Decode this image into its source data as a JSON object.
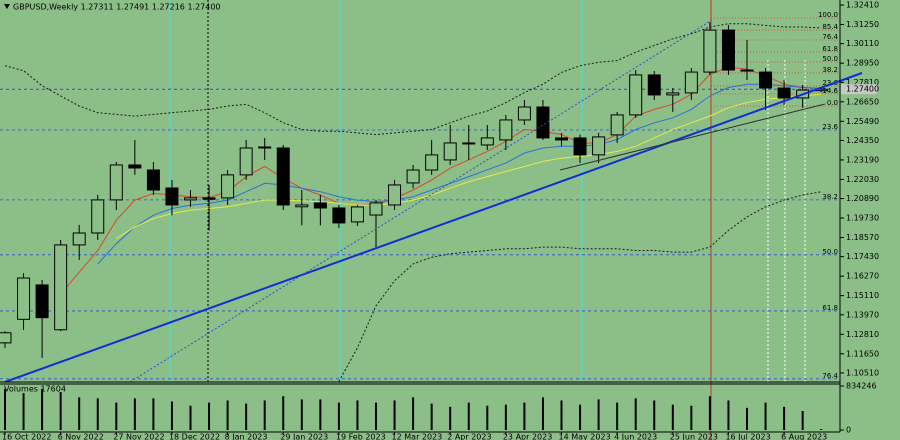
{
  "chart_data": {
    "type": "candlestick",
    "title": "GBPUSD,Weekly  1.27311 1.27491 1.27216 1.27400",
    "categories": [
      "16 Oct 2022",
      null,
      null,
      "6 Nov 2022",
      null,
      null,
      "27 Nov 2022",
      null,
      null,
      "18 Dec 2022",
      null,
      null,
      "8 Jan 2023",
      null,
      null,
      "29 Jan 2023",
      null,
      null,
      "19 Feb 2023",
      null,
      null,
      "12 Mar 2023",
      null,
      null,
      "2 Apr 2023",
      null,
      null,
      "23 Apr 2023",
      null,
      null,
      "14 May 2023",
      null,
      null,
      "4 Jun 2023",
      null,
      null,
      "25 Jun 2023",
      null,
      null,
      "16 Jul 2023",
      null,
      null,
      "6 Aug 2023",
      null,
      null
    ],
    "open": [
      1.123,
      1.137,
      1.1575,
      1.1308,
      1.1813,
      1.1884,
      1.2081,
      1.2289,
      1.2259,
      1.2152,
      1.2081,
      1.2093,
      1.2093,
      1.223,
      1.239,
      1.239,
      1.204,
      1.2063,
      1.2033,
      1.195,
      1.1991,
      1.2051,
      1.2182,
      1.2259,
      1.2319,
      1.242,
      1.2408,
      1.2438,
      1.2557,
      1.2634,
      1.245,
      1.245,
      1.2349,
      1.2468,
      1.2587,
      1.2825,
      1.2706,
      1.2718,
      1.2842,
      1.3092,
      1.2854,
      1.2842,
      1.2747,
      1.2688,
      1.27311
    ],
    "high": [
      1.13,
      1.1645,
      1.1605,
      1.1843,
      1.1932,
      1.2111,
      1.2307,
      1.2438,
      1.2307,
      1.22,
      1.214,
      1.217,
      1.2259,
      1.2438,
      1.245,
      1.2408,
      1.214,
      1.2111,
      1.2051,
      1.2051,
      1.2081,
      1.22,
      1.2289,
      1.2438,
      1.2527,
      1.2527,
      1.2527,
      1.2587,
      1.2676,
      1.2676,
      1.248,
      1.247,
      1.248,
      1.2605,
      1.2854,
      1.2848,
      1.2747,
      1.2866,
      1.314,
      1.3122,
      1.3033,
      1.2866,
      1.2795,
      1.2765,
      1.27491
    ],
    "low": [
      1.12,
      1.1307,
      1.114,
      1.13,
      1.1724,
      1.1843,
      1.2021,
      1.223,
      1.2111,
      1.199,
      1.204,
      1.19,
      1.2051,
      1.22,
      1.2319,
      1.2021,
      1.193,
      1.193,
      1.1914,
      1.1926,
      1.18,
      1.2021,
      1.215,
      1.223,
      1.2289,
      1.2319,
      1.2378,
      1.2378,
      1.2527,
      1.2438,
      1.24,
      1.23,
      1.23,
      1.242,
      1.2569,
      1.2676,
      1.2605,
      1.2676,
      1.2825,
      1.2825,
      1.2795,
      1.2617,
      1.2646,
      1.2629,
      1.27216
    ],
    "close": [
      1.129,
      1.1616,
      1.138,
      1.1813,
      1.1884,
      1.2081,
      1.2289,
      1.2271,
      1.214,
      1.2051,
      1.2093,
      1.2085,
      1.223,
      1.239,
      1.2396,
      1.2051,
      1.2051,
      1.2033,
      1.1944,
      1.2039,
      1.2063,
      1.217,
      1.2259,
      1.2349,
      1.242,
      1.242,
      1.245,
      1.2557,
      1.2634,
      1.245,
      1.2438,
      1.2349,
      1.2456,
      1.2587,
      1.2825,
      1.2706,
      1.2718,
      1.2842,
      1.3092,
      1.2854,
      1.2848,
      1.2747,
      1.2688,
      1.2735,
      1.274
    ],
    "up_color": "#8cbf88",
    "down_color": "#000000",
    "series": [
      {
        "color": "#d9472b",
        "dash": false,
        "values": [
          null,
          null,
          null,
          1.152,
          1.165,
          1.178,
          1.196,
          1.208,
          1.212,
          1.211,
          1.21,
          1.2095,
          1.213,
          1.222,
          1.228,
          1.221,
          1.215,
          1.211,
          1.206,
          1.205,
          1.2055,
          1.209,
          1.214,
          1.22,
          1.227,
          1.232,
          1.237,
          1.243,
          1.25,
          1.249,
          1.247,
          1.242,
          1.242,
          1.247,
          1.258,
          1.262,
          1.265,
          1.271,
          1.283,
          1.287,
          1.286,
          1.282,
          1.277,
          1.275,
          1.2745
        ]
      },
      {
        "color": "#2f6fd6",
        "dash": false,
        "values": [
          null,
          null,
          null,
          null,
          null,
          1.17,
          1.182,
          1.192,
          1.199,
          1.203,
          1.205,
          1.206,
          1.208,
          1.213,
          1.218,
          1.217,
          1.215,
          1.213,
          1.21,
          1.208,
          1.207,
          1.208,
          1.21,
          1.214,
          1.218,
          1.222,
          1.226,
          1.23,
          1.236,
          1.239,
          1.24,
          1.24,
          1.241,
          1.244,
          1.25,
          1.254,
          1.257,
          1.262,
          1.27,
          1.275,
          1.277,
          1.277,
          1.276,
          1.275,
          1.2745
        ]
      },
      {
        "color": "#e8e84a",
        "dash": false,
        "values": [
          null,
          null,
          null,
          null,
          null,
          null,
          1.185,
          1.192,
          1.197,
          1.2,
          1.202,
          1.203,
          1.204,
          1.206,
          1.208,
          1.208,
          1.2075,
          1.207,
          1.206,
          1.205,
          1.205,
          1.206,
          1.208,
          1.211,
          1.215,
          1.219,
          1.222,
          1.225,
          1.228,
          1.231,
          1.233,
          1.234,
          1.235,
          1.237,
          1.24,
          1.245,
          1.25,
          1.254,
          1.258,
          1.263,
          1.266,
          1.268,
          1.269,
          1.27,
          1.271
        ]
      },
      {
        "color": "#1a1a1a",
        "dash": true,
        "values": [
          1.288,
          1.285,
          1.276,
          1.27,
          1.264,
          1.26,
          1.259,
          1.258,
          1.259,
          1.26,
          1.261,
          1.262,
          1.264,
          1.265,
          1.26,
          1.254,
          1.25,
          1.249,
          1.249,
          1.248,
          1.247,
          1.248,
          1.249,
          1.25,
          1.254,
          1.258,
          1.261,
          1.266,
          1.272,
          1.277,
          1.284,
          1.288,
          1.29,
          1.291,
          1.296,
          1.3,
          1.304,
          1.307,
          1.311,
          1.313,
          1.313,
          1.312,
          1.311,
          1.311,
          1.3105
        ]
      },
      {
        "color": "#1a1a1a",
        "dash": true,
        "values": [
          null,
          null,
          null,
          null,
          null,
          null,
          null,
          null,
          null,
          null,
          null,
          null,
          null,
          null,
          null,
          null,
          null,
          null,
          1.1,
          1.12,
          1.145,
          1.16,
          1.17,
          1.174,
          1.176,
          1.177,
          1.178,
          1.179,
          1.179,
          1.18,
          1.18,
          1.179,
          1.179,
          1.179,
          1.178,
          1.178,
          1.177,
          1.177,
          1.18,
          1.19,
          1.198,
          1.204,
          1.208,
          1.211,
          1.213
        ]
      }
    ],
    "ylim": [
      1.0997,
      1.3271
    ],
    "yticks": [
      {
        "value": 1.3241,
        "label": "1.32410"
      },
      {
        "value": 1.3125,
        "label": "1.31250"
      },
      {
        "value": 1.3011,
        "label": "1.30110"
      },
      {
        "value": 1.2895,
        "label": "1.28950"
      },
      {
        "value": 1.2781,
        "label": "1.27810"
      },
      {
        "value": 1.2665,
        "label": "1.26650"
      },
      {
        "value": 1.2549,
        "label": "1.25490"
      },
      {
        "value": 1.2435,
        "label": "1.24350"
      },
      {
        "value": 1.2319,
        "label": "1.23190"
      },
      {
        "value": 1.2203,
        "label": "1.22030"
      },
      {
        "value": 1.2089,
        "label": "1.20890"
      },
      {
        "value": 1.1973,
        "label": "1.19730"
      },
      {
        "value": 1.1857,
        "label": "1.18570"
      },
      {
        "value": 1.1743,
        "label": "1.17430"
      },
      {
        "value": 1.1627,
        "label": "1.16270"
      },
      {
        "value": 1.1511,
        "label": "1.15110"
      },
      {
        "value": 1.1397,
        "label": "1.13970"
      },
      {
        "value": 1.1281,
        "label": "1.12810"
      },
      {
        "value": 1.1165,
        "label": "1.11650"
      },
      {
        "value": 1.1051,
        "label": "1.10510"
      }
    ],
    "current_price": {
      "value": 1.274,
      "label": "1.27400"
    },
    "fib_levels": [
      {
        "value": 1.3164,
        "label": "100.0",
        "color": "#e03a1e"
      },
      {
        "value": 1.3092,
        "label": "85.4",
        "color": "#e03a1e"
      },
      {
        "value": 1.3033,
        "label": "76.4",
        "color": "#e03a1e"
      },
      {
        "value": 1.2962,
        "label": "61.8",
        "color": "#e03a1e"
      },
      {
        "value": 1.2902,
        "label": "50.0",
        "color": "#e03a1e"
      },
      {
        "value": 1.2837,
        "label": "38.2",
        "color": "#e03a1e"
      },
      {
        "value": 1.2759,
        "label": "23.6",
        "color": "#e03a1e"
      },
      {
        "value": 1.2712,
        "label": "14.6",
        "color": "#e03a1e"
      },
      {
        "value": 1.264,
        "label": "0.0",
        "color": "#e03a1e"
      },
      {
        "value": 1.2497,
        "label": "23.6",
        "color": "#2a4fd0"
      },
      {
        "value": 1.2081,
        "label": "38.2",
        "color": "#2a4fd0"
      },
      {
        "value": 1.1754,
        "label": "50.0",
        "color": "#2a4fd0"
      },
      {
        "value": 1.142,
        "label": "61.8",
        "color": "#2a4fd0"
      },
      {
        "value": 1.1016,
        "label": "76.4",
        "color": "#2a4fd0"
      }
    ],
    "volume": {
      "label": "Volumes 17604",
      "color": "#000000",
      "values": [
        780000,
        700000,
        780000,
        720000,
        620000,
        600000,
        520000,
        600000,
        600000,
        540000,
        460000,
        520000,
        560000,
        500000,
        560000,
        640000,
        580000,
        580000,
        520000,
        560000,
        520000,
        560000,
        620000,
        500000,
        440000,
        520000,
        460000,
        480000,
        520000,
        620000,
        560000,
        480000,
        580000,
        520000,
        600000,
        560000,
        480000,
        460000,
        640000,
        560000,
        420000,
        520000,
        440000,
        360000,
        17604
      ],
      "ylim": [
        0,
        834246
      ],
      "yticks": [
        0,
        834246
      ]
    }
  }
}
